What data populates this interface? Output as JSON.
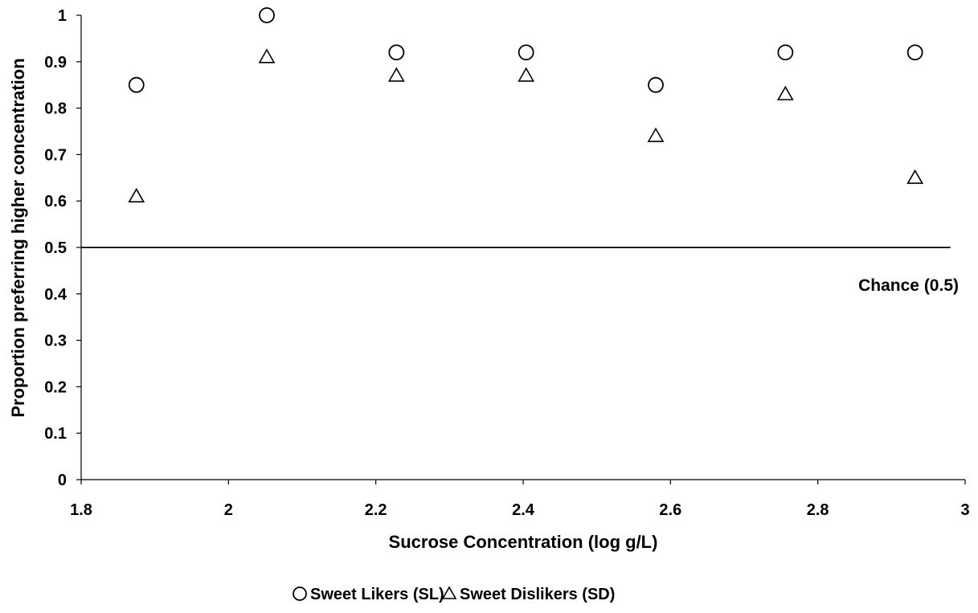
{
  "chart_data": {
    "type": "scatter",
    "title": "",
    "xlabel": "Sucrose Concentration (log g/L)",
    "ylabel": "Proportion preferring higher concentration",
    "xlim": [
      1.8,
      3
    ],
    "ylim": [
      0,
      1
    ],
    "x_ticks": [
      "1.8",
      "2",
      "2.2",
      "2.4",
      "2.6",
      "2.8",
      "3"
    ],
    "y_ticks": [
      "0",
      "0.1",
      "0.2",
      "0.3",
      "0.4",
      "0.5",
      "0.6",
      "0.7",
      "0.8",
      "0.9",
      "1"
    ],
    "grid": false,
    "legend_position": "bottom",
    "series": [
      {
        "name": "Sweet Likers (SL)",
        "marker": "circle",
        "points": [
          {
            "x": 1.875,
            "y": 0.85
          },
          {
            "x": 2.052,
            "y": 1.0
          },
          {
            "x": 2.228,
            "y": 0.92
          },
          {
            "x": 2.404,
            "y": 0.92
          },
          {
            "x": 2.58,
            "y": 0.85
          },
          {
            "x": 2.756,
            "y": 0.92
          },
          {
            "x": 2.932,
            "y": 0.92
          }
        ]
      },
      {
        "name": "Sweet Dislikers (SD)",
        "marker": "triangle",
        "points": [
          {
            "x": 1.875,
            "y": 0.61
          },
          {
            "x": 2.052,
            "y": 0.91
          },
          {
            "x": 2.228,
            "y": 0.87
          },
          {
            "x": 2.404,
            "y": 0.87
          },
          {
            "x": 2.58,
            "y": 0.74
          },
          {
            "x": 2.756,
            "y": 0.83
          },
          {
            "x": 2.932,
            "y": 0.65
          }
        ]
      }
    ],
    "reference_line": {
      "y": 0.5,
      "x_start": 1.8,
      "x_end": 2.98,
      "label": "Chance (0.5)"
    }
  }
}
